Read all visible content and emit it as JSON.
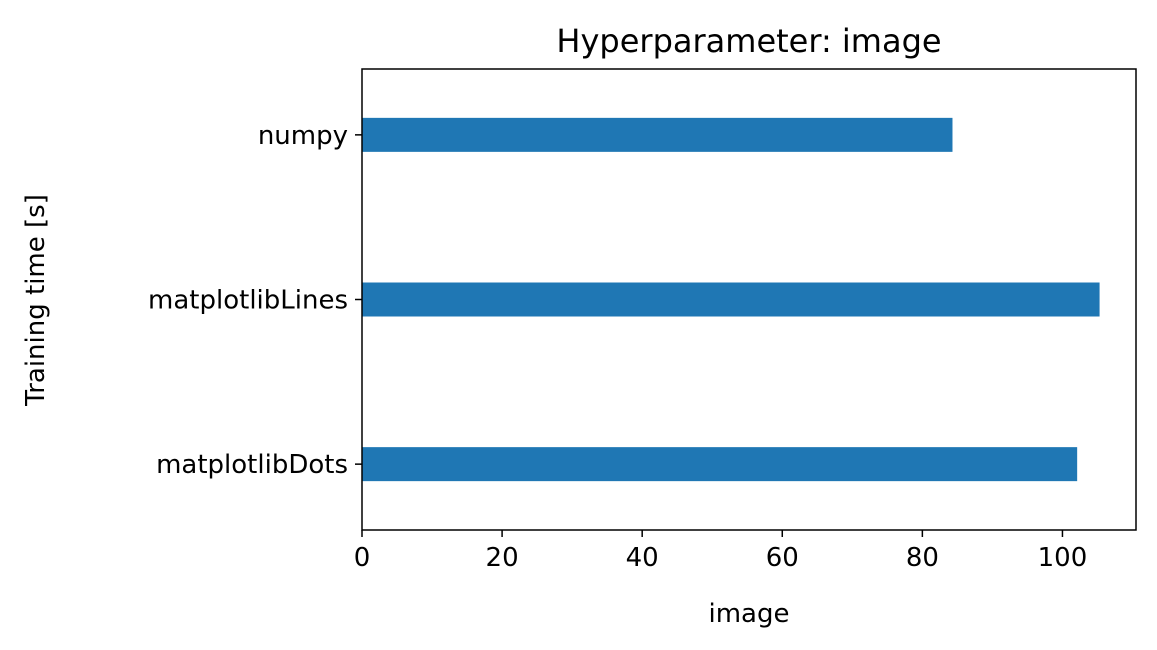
{
  "chart_data": {
    "type": "bar",
    "orientation": "horizontal",
    "title": "Hyperparameter: image",
    "xlabel": "image",
    "ylabel": "Training time [s]",
    "categories": [
      "numpy",
      "matplotlibLines",
      "matplotlibDots"
    ],
    "values": [
      84.3,
      105.3,
      102.1
    ],
    "xlim": [
      0,
      110.5
    ],
    "xticks": [
      0,
      20,
      40,
      60,
      80,
      100
    ],
    "grid": false,
    "bar_color": "#1f77b4"
  }
}
